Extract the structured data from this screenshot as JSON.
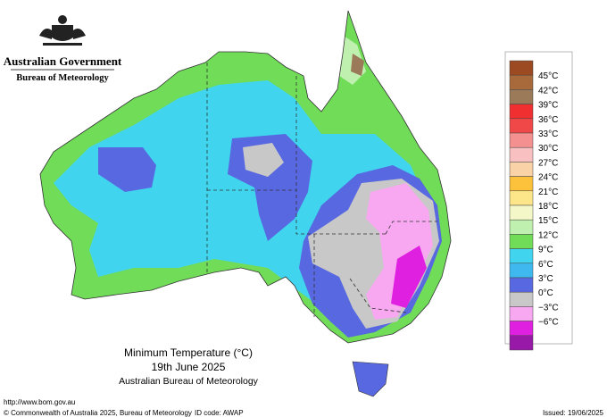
{
  "header": {
    "government": "Australian Government",
    "agency": "Bureau of Meteorology"
  },
  "title": {
    "line1": "Minimum Temperature (°C)",
    "line2": "19th June 2025",
    "line3": "Australian Bureau of Meteorology"
  },
  "legend": {
    "labels": [
      "45°C",
      "42°C",
      "39°C",
      "36°C",
      "33°C",
      "30°C",
      "27°C",
      "24°C",
      "21°C",
      "18°C",
      "15°C",
      "12°C",
      "9°C",
      "6°C",
      "3°C",
      "0°C",
      "−3°C",
      "−6°C"
    ],
    "colors": [
      "#9c4a22",
      "#a86a3a",
      "#9a7a58",
      "#f03030",
      "#f04848",
      "#f59090",
      "#f8c0c0",
      "#f9d2a8",
      "#fcc23c",
      "#fde68a",
      "#f4f8c8",
      "#bff0b0",
      "#70dc58",
      "#40d4ee",
      "#3fb8f0",
      "#5868e0",
      "#c8c8c8",
      "#f8a8f0",
      "#e020e0",
      "#9818a8"
    ]
  },
  "footer": {
    "url": "http://www.bom.gov.au",
    "copyright": "© Commonwealth of Australia 2025, Bureau of Meteorology",
    "id_code": "ID code: AWAP",
    "issued": "Issued: 19/06/2025"
  }
}
